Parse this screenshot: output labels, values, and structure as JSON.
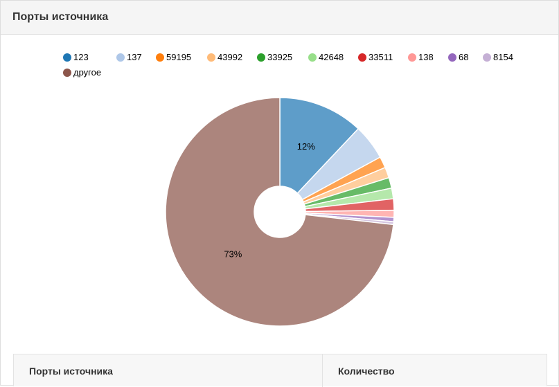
{
  "panel": {
    "title": "Порты источника"
  },
  "legend": {
    "items": [
      {
        "label": "123",
        "color": "#1f77b4"
      },
      {
        "label": "137",
        "color": "#aec7e8"
      },
      {
        "label": "59195",
        "color": "#ff7f0e"
      },
      {
        "label": "43992",
        "color": "#ffbb78"
      },
      {
        "label": "33925",
        "color": "#2ca02c"
      },
      {
        "label": "42648",
        "color": "#98df8a"
      },
      {
        "label": "33511",
        "color": "#d62728"
      },
      {
        "label": "138",
        "color": "#ff9896"
      },
      {
        "label": "68",
        "color": "#9467bd"
      },
      {
        "label": "8154",
        "color": "#c5b0d5"
      },
      {
        "label": "другое",
        "color": "#8c564b"
      }
    ]
  },
  "chart_data": {
    "type": "pie",
    "donut": true,
    "start_angle": "12 o'clock",
    "direction": "clockwise",
    "slices": [
      {
        "label": "123",
        "value": 12,
        "color": "#1f77b4",
        "display": "12%"
      },
      {
        "label": "137",
        "value": 5,
        "color": "#aec7e8",
        "display": ""
      },
      {
        "label": "59195",
        "value": 1.6,
        "color": "#ff7f0e",
        "display": ""
      },
      {
        "label": "43992",
        "value": 1.5,
        "color": "#ffbb78",
        "display": ""
      },
      {
        "label": "33925",
        "value": 1.5,
        "color": "#2ca02c",
        "display": ""
      },
      {
        "label": "42648",
        "value": 1.5,
        "color": "#98df8a",
        "display": ""
      },
      {
        "label": "33511",
        "value": 1.6,
        "color": "#d62728",
        "display": ""
      },
      {
        "label": "138",
        "value": 1.0,
        "color": "#ff9896",
        "display": ""
      },
      {
        "label": "68",
        "value": 0.6,
        "color": "#9467bd",
        "display": ""
      },
      {
        "label": "8154",
        "value": 0.4,
        "color": "#c5b0d5",
        "display": ""
      },
      {
        "label": "другое",
        "value": 73,
        "color": "#8c564b",
        "display": "73%"
      }
    ]
  },
  "table": {
    "headers": [
      "Порты источника",
      "Количество"
    ]
  }
}
